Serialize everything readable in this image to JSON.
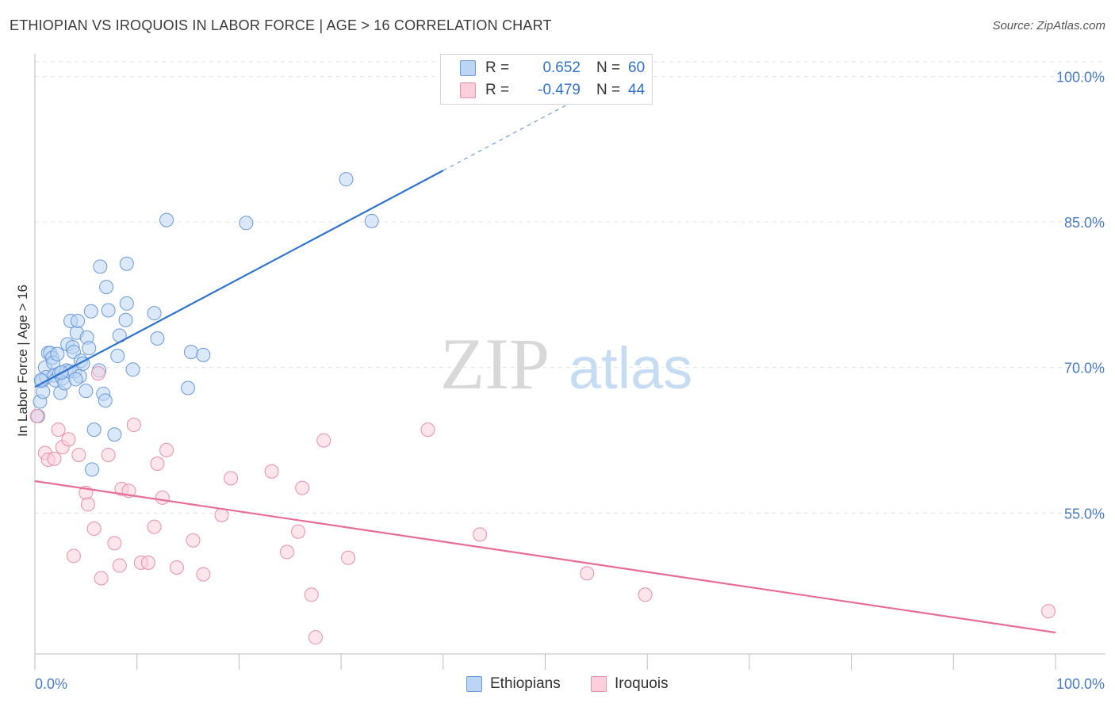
{
  "title": "ETHIOPIAN VS IROQUOIS IN LABOR FORCE | AGE > 16 CORRELATION CHART",
  "source": "Source: ZipAtlas.com",
  "watermark": {
    "zip": "ZIP",
    "atlas": "atlas"
  },
  "stats": {
    "r_label": "R =",
    "n_label": "N =",
    "rows": [
      {
        "r": "0.652",
        "n": "60",
        "color": "#a8c8f0",
        "stroke": "#5b8fd6"
      },
      {
        "r": "-0.479",
        "n": "44",
        "color": "#f8c0d0",
        "stroke": "#e27fa0"
      }
    ]
  },
  "legend": {
    "items": [
      {
        "label": "Ethiopians",
        "fill": "#bcd5f5",
        "stroke": "#6a9ad8"
      },
      {
        "label": "Iroquois",
        "fill": "#fbd0dc",
        "stroke": "#e690ab"
      }
    ]
  },
  "chart_data": {
    "type": "scatter",
    "title": "ETHIOPIAN VS IROQUOIS IN LABOR FORCE | AGE > 16 CORRELATION CHART",
    "xlabel": "",
    "ylabel": "In Labor Force | Age > 16",
    "xlim": [
      0,
      100
    ],
    "ylim": [
      40.5,
      101.5
    ],
    "x_tick_labels": [
      "0.0%",
      "100.0%"
    ],
    "y_ticks": [
      55,
      70,
      85,
      100
    ],
    "y_tick_labels": [
      "55.0%",
      "70.0%",
      "85.0%",
      "100.0%"
    ],
    "grid": true,
    "series": [
      {
        "name": "Ethiopians",
        "color": "#6a9ad8",
        "fill": "#bcd5f5",
        "trend": {
          "x0": 0,
          "y0": 68.0,
          "x1": 40,
          "y1": 90.3,
          "dash_to_x": 52,
          "dash_to_y": 97.0,
          "color": "#2f73d0"
        },
        "points": [
          [
            0.3,
            65.0
          ],
          [
            0.5,
            66.5
          ],
          [
            0.7,
            68.6
          ],
          [
            0.8,
            67.5
          ],
          [
            1.0,
            70.0
          ],
          [
            1.1,
            69.0
          ],
          [
            1.3,
            71.5
          ],
          [
            1.5,
            71.5
          ],
          [
            1.7,
            71.0
          ],
          [
            1.8,
            70.5
          ],
          [
            1.9,
            69.2
          ],
          [
            2.0,
            68.7
          ],
          [
            2.2,
            71.4
          ],
          [
            2.4,
            69.4
          ],
          [
            2.5,
            67.4
          ],
          [
            2.7,
            68.9
          ],
          [
            2.9,
            68.4
          ],
          [
            3.1,
            69.7
          ],
          [
            3.2,
            72.4
          ],
          [
            3.4,
            69.6
          ],
          [
            3.5,
            74.8
          ],
          [
            3.7,
            72.1
          ],
          [
            3.8,
            71.6
          ],
          [
            3.9,
            69.6
          ],
          [
            4.1,
            73.6
          ],
          [
            4.2,
            74.8
          ],
          [
            4.4,
            69.1
          ],
          [
            4.5,
            70.7
          ],
          [
            4.7,
            70.4
          ],
          [
            5.0,
            67.6
          ],
          [
            5.1,
            73.1
          ],
          [
            5.3,
            72.0
          ],
          [
            5.5,
            75.8
          ],
          [
            5.6,
            59.5
          ],
          [
            5.8,
            63.6
          ],
          [
            6.3,
            69.7
          ],
          [
            6.7,
            67.3
          ],
          [
            6.9,
            66.6
          ],
          [
            7.0,
            78.3
          ],
          [
            7.2,
            75.9
          ],
          [
            7.8,
            63.1
          ],
          [
            8.1,
            71.2
          ],
          [
            8.3,
            73.3
          ],
          [
            8.9,
            74.9
          ],
          [
            9.0,
            76.6
          ],
          [
            9.6,
            69.8
          ],
          [
            11.7,
            75.6
          ],
          [
            12.0,
            73.0
          ],
          [
            12.9,
            85.2
          ],
          [
            15.0,
            67.9
          ],
          [
            15.3,
            71.6
          ],
          [
            16.5,
            71.3
          ],
          [
            20.7,
            84.9
          ],
          [
            30.5,
            89.4
          ],
          [
            33.0,
            85.1
          ],
          [
            6.4,
            80.4
          ],
          [
            9.0,
            80.7
          ],
          [
            0.6,
            68.7
          ],
          [
            2.6,
            69.5
          ],
          [
            4.0,
            68.8
          ]
        ]
      },
      {
        "name": "Iroquois",
        "color": "#e690ab",
        "fill": "#fbd0dc",
        "trend": {
          "x0": 0,
          "y0": 58.3,
          "x1": 100,
          "y1": 42.7,
          "color": "#e86c98"
        },
        "points": [
          [
            0.2,
            65.0
          ],
          [
            1.0,
            61.2
          ],
          [
            1.3,
            60.5
          ],
          [
            1.9,
            60.6
          ],
          [
            2.3,
            63.6
          ],
          [
            2.7,
            61.8
          ],
          [
            3.3,
            62.6
          ],
          [
            3.8,
            50.6
          ],
          [
            4.3,
            61.0
          ],
          [
            5.0,
            57.1
          ],
          [
            5.2,
            55.9
          ],
          [
            5.8,
            53.4
          ],
          [
            6.2,
            69.4
          ],
          [
            6.5,
            48.3
          ],
          [
            7.2,
            61.0
          ],
          [
            7.8,
            51.9
          ],
          [
            8.3,
            49.6
          ],
          [
            8.5,
            57.5
          ],
          [
            9.2,
            57.3
          ],
          [
            9.7,
            64.1
          ],
          [
            10.4,
            49.9
          ],
          [
            11.1,
            49.9
          ],
          [
            11.7,
            53.6
          ],
          [
            12.0,
            60.1
          ],
          [
            12.5,
            56.6
          ],
          [
            12.9,
            61.5
          ],
          [
            13.9,
            49.4
          ],
          [
            15.5,
            52.2
          ],
          [
            16.5,
            48.7
          ],
          [
            18.3,
            54.8
          ],
          [
            19.2,
            58.6
          ],
          [
            23.2,
            59.3
          ],
          [
            24.7,
            51.0
          ],
          [
            25.8,
            53.1
          ],
          [
            26.2,
            57.6
          ],
          [
            27.1,
            46.6
          ],
          [
            27.5,
            42.2
          ],
          [
            28.3,
            62.5
          ],
          [
            30.7,
            50.4
          ],
          [
            38.5,
            63.6
          ],
          [
            43.6,
            52.8
          ],
          [
            54.1,
            48.8
          ],
          [
            59.8,
            46.6
          ],
          [
            99.3,
            44.9
          ]
        ]
      }
    ]
  }
}
